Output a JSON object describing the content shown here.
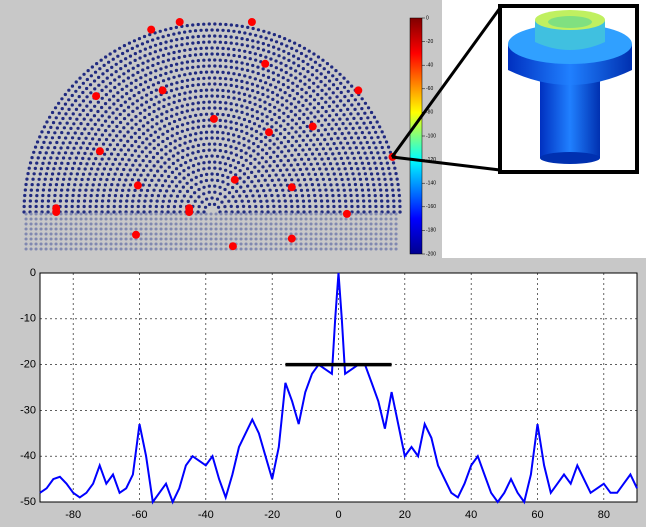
{
  "chart_data": [
    {
      "type": "scatter",
      "color": "#ff0000",
      "x": [
        -0.32,
        -0.17,
        0.21,
        -0.61,
        -0.26,
        0.28,
        0.77,
        0.01,
        0.3,
        0.53,
        -0.59,
        0.95,
        -0.39,
        0.12,
        0.42,
        -0.82,
        -0.82,
        -0.12,
        -0.12,
        0.71,
        -0.4,
        0.11,
        0.42
      ],
      "values": [
        0.96,
        1.0,
        1.0,
        0.61,
        0.64,
        0.78,
        0.64,
        0.49,
        0.42,
        0.45,
        0.32,
        0.29,
        0.14,
        0.17,
        0.13,
        0.02,
        0.0,
        0.02,
        0.0,
        -0.01,
        -0.12,
        -0.18,
        -0.14
      ],
      "colorbar": {
        "range": [
          -200,
          0
        ],
        "ticks": [
          0,
          -20,
          -40,
          -60,
          -80,
          -100,
          -120,
          -140,
          -160,
          -180,
          -200
        ]
      }
    },
    {
      "type": "line",
      "color": "#0000ff",
      "x": [
        -90,
        -88,
        -86,
        -84,
        -82,
        -80,
        -78,
        -76,
        -74,
        -72,
        -70,
        -68,
        -66,
        -64,
        -62,
        -60,
        -58,
        -56,
        -54,
        -52,
        -50,
        -48,
        -46,
        -44,
        -42,
        -40,
        -38,
        -36,
        -34,
        -32,
        -30,
        -28,
        -26,
        -24,
        -22,
        -20,
        -18,
        -16,
        -14,
        -12,
        -10,
        -8,
        -6,
        -4,
        -2,
        -1,
        0,
        1,
        2,
        4,
        6,
        8,
        10,
        12,
        14,
        16,
        18,
        20,
        22,
        24,
        26,
        28,
        30,
        32,
        34,
        36,
        38,
        40,
        42,
        44,
        46,
        48,
        50,
        52,
        54,
        56,
        58,
        60,
        62,
        64,
        66,
        68,
        70,
        72,
        74,
        76,
        78,
        80,
        82,
        84,
        86,
        88,
        90
      ],
      "values": [
        -48,
        -47,
        -45,
        -44.5,
        -46,
        -48,
        -49,
        -48,
        -46,
        -42,
        -46,
        -44,
        -48,
        -47,
        -44,
        -33,
        -40,
        -50,
        -48,
        -46,
        -50,
        -47,
        -42,
        -40,
        -41,
        -42,
        -40,
        -45,
        -49,
        -44,
        -38,
        -35,
        -32,
        -35,
        -40,
        -45,
        -38,
        -24,
        -28,
        -33,
        -26,
        -22,
        -20,
        -21,
        -22,
        -10,
        0,
        -10,
        -22,
        -21,
        -20,
        -20,
        -24,
        -28,
        -34,
        -26,
        -33,
        -40,
        -38,
        -40,
        -33,
        -36,
        -42,
        -45,
        -48,
        -49,
        -46,
        -42,
        -40,
        -44,
        -48,
        -50,
        -48,
        -45,
        -48,
        -50,
        -44,
        -33,
        -42,
        -48,
        -46,
        -44,
        -46,
        -42,
        -45,
        -48,
        -47,
        -46,
        -48,
        -48,
        -46,
        -44,
        -47
      ],
      "xlim": [
        -90,
        90
      ],
      "ylim": [
        -50,
        0
      ],
      "xticks": [
        -80,
        -60,
        -40,
        -20,
        0,
        20,
        40,
        60,
        80
      ],
      "yticks": [
        0,
        -10,
        -20,
        -30,
        -40,
        -50
      ],
      "grid": true,
      "annotation_line": {
        "x": [
          -16,
          16
        ],
        "y": -20
      }
    }
  ]
}
